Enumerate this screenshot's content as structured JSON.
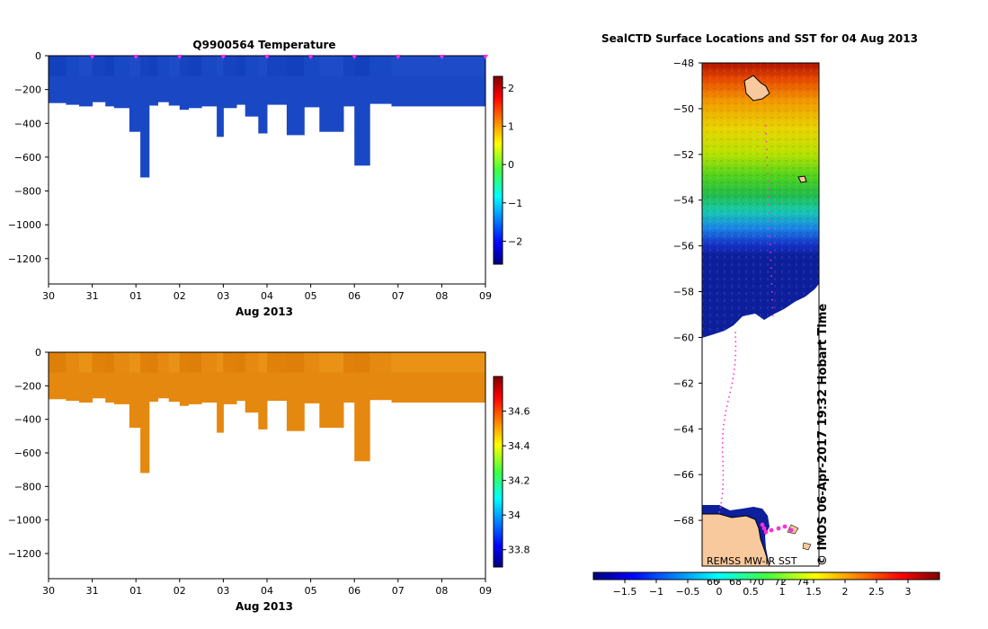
{
  "colors": {
    "temperature_fill": "#1a48c4",
    "salinity_fill": "#e5880f",
    "marker": "#ff2dd6",
    "land": "#f7c99c"
  },
  "chart_data": [
    {
      "type": "heatmap",
      "title": "Q9900564  Temperature",
      "xlabel": "Aug 2013",
      "ylabel": "",
      "x_ticks": [
        "30",
        "31",
        "01",
        "02",
        "03",
        "04",
        "05",
        "06",
        "07",
        "08",
        "09"
      ],
      "y_ticks": [
        "0",
        "-200",
        "-400",
        "-600",
        "-800",
        "-1000",
        "-1200"
      ],
      "ylim": [
        -1350,
        0
      ],
      "colorbar_ticks": [
        "2",
        "1",
        "0",
        "-1",
        "-2"
      ],
      "colorbar_range": [
        -2.6,
        2.3
      ],
      "profile_day_offsets": [
        0,
        0.4,
        0.7,
        1.0,
        1.3,
        1.5,
        1.85,
        2.1,
        2.3,
        2.5,
        2.75,
        3.0,
        3.2,
        3.5,
        3.85,
        4.0,
        4.3,
        4.5,
        4.8,
        5.0,
        5.45,
        5.85,
        6.2,
        6.75,
        7.0,
        7.35,
        7.85
      ],
      "profile_max_depth": [
        280,
        290,
        300,
        275,
        300,
        310,
        450,
        720,
        295,
        275,
        295,
        320,
        310,
        300,
        480,
        310,
        290,
        360,
        460,
        290,
        470,
        305,
        450,
        300,
        650,
        285,
        300
      ],
      "marker_day_offsets": [
        1,
        2,
        3,
        4,
        5,
        6,
        7,
        8,
        9,
        10
      ],
      "values": "temperature approximately -1.8 to -1.5 °C throughout sampled depths"
    },
    {
      "type": "heatmap",
      "title": "",
      "xlabel": "Aug 2013",
      "ylabel": "",
      "x_ticks": [
        "30",
        "31",
        "01",
        "02",
        "03",
        "04",
        "05",
        "06",
        "07",
        "08",
        "09"
      ],
      "y_ticks": [
        "0",
        "-200",
        "-400",
        "-600",
        "-800",
        "-1000",
        "-1200"
      ],
      "ylim": [
        -1350,
        0
      ],
      "colorbar_ticks": [
        "34.6",
        "34.4",
        "34.2",
        "34",
        "33.8"
      ],
      "colorbar_range": [
        33.7,
        34.8
      ],
      "values": "salinity approximately 34.55 to 34.7 throughout sampled depths"
    },
    {
      "type": "heatmap",
      "title": "SealCTD Surface Locations and SST for 04 Aug 2013",
      "y_ticks": [
        "-48",
        "-50",
        "-52",
        "-54",
        "-56",
        "-58",
        "-60",
        "-62",
        "-64",
        "-66",
        "-68"
      ],
      "ylim": [
        -70,
        -48
      ],
      "lon_labels": [
        "66",
        "68",
        "70",
        "72",
        "74"
      ],
      "colorbar_ticks": [
        "-1.5",
        "-1",
        "-0.5",
        "0",
        "0.5",
        "1",
        "1.5",
        "2",
        "2.5",
        "3"
      ],
      "colorbar_range": [
        -2,
        3.5
      ],
      "sst_source": "REMSS MW-IR SST",
      "credit": "© IMOS 06-Apr-2017 19:32 Hobart Time"
    }
  ]
}
